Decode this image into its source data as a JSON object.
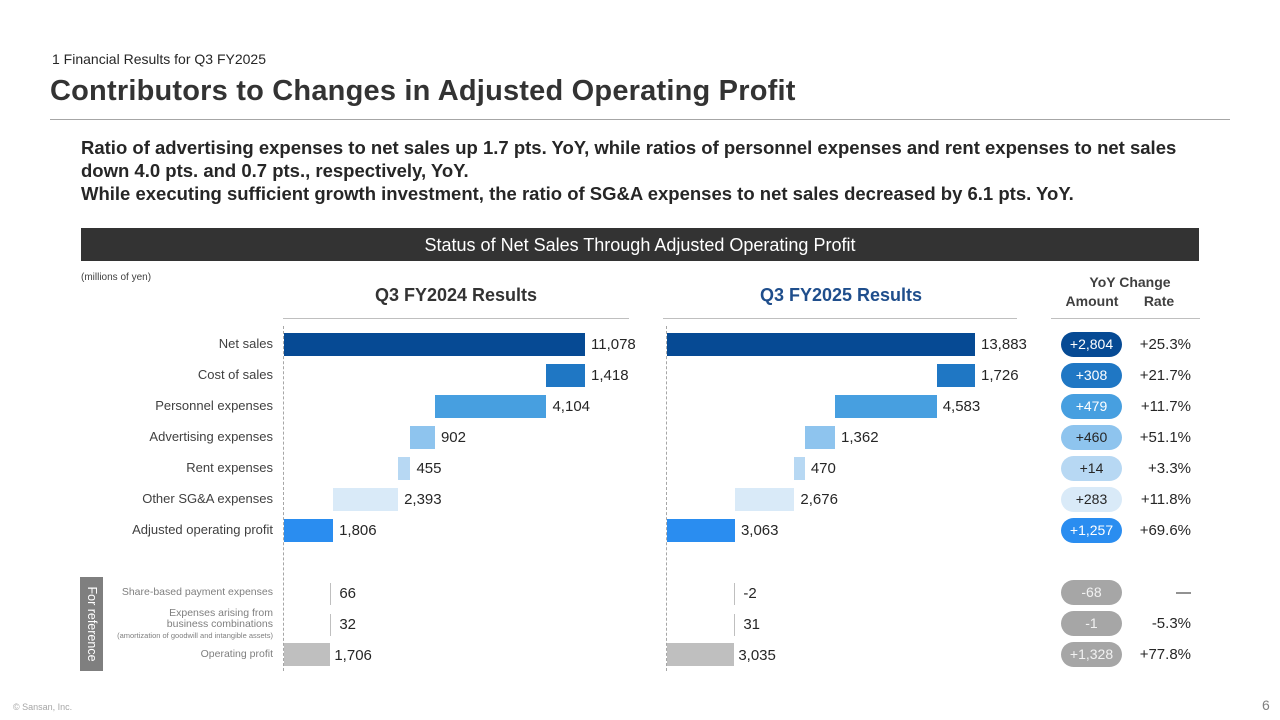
{
  "header": {
    "section": "1   Financial Results for Q3 FY2025",
    "title": "Contributors to Changes in Adjusted Operating Profit"
  },
  "summary": [
    "Ratio of advertising expenses to net sales up 1.7 pts. YoY, while ratios of personnel expenses and rent expenses to net sales down 4.0 pts. and 0.7 pts., respectively, YoY.",
    "While executing sufficient growth investment, the ratio of SG&A expenses to net sales decreased by 6.1 pts. YoY."
  ],
  "banner": "Status of Net Sales Through Adjusted Operating Profit",
  "units": "(millions of yen)",
  "yoy_header": {
    "title": "YoY Change",
    "amount": "Amount",
    "rate": "Rate"
  },
  "reference_tab": "For reference",
  "footer": {
    "copyright": "© Sansan,  Inc.",
    "page": "6"
  },
  "colors": {
    "net_sales": "#064a94",
    "cost_of_sales": "#1f77c4",
    "personnel": "#479fe0",
    "advertising": "#8ec4ee",
    "rent": "#b7d8f3",
    "other_sga": "#d9eaf8",
    "adj_op_profit": "#2a8df0",
    "reference": "#bfbfbf",
    "panel_2025_title": "#1f4e8c"
  },
  "chart_data": {
    "type": "bar",
    "subtype": "waterfall",
    "title": "Status of Net Sales Through Adjusted Operating Profit",
    "units": "millions of yen",
    "categories": [
      "Net sales",
      "Cost of sales",
      "Personnel expenses",
      "Advertising expenses",
      "Rent expenses",
      "Other SG&A expenses",
      "Adjusted operating profit"
    ],
    "series": [
      {
        "name": "Q3 FY2024 Results",
        "values": [
          11078,
          1418,
          4104,
          902,
          455,
          2393,
          1806
        ],
        "labels": [
          "11,078",
          "1,418",
          "4,104",
          "902",
          "455",
          "2,393",
          "1,806"
        ]
      },
      {
        "name": "Q3 FY2025 Results",
        "values": [
          13883,
          1726,
          4583,
          1362,
          470,
          2676,
          3063
        ],
        "labels": [
          "13,883",
          "1,726",
          "4,583",
          "1,362",
          "470",
          "2,676",
          "3,063"
        ]
      }
    ],
    "yoy_amount": [
      "+2,804",
      "+308",
      "+479",
      "+460",
      "+14",
      "+283",
      "+1,257"
    ],
    "yoy_rate": [
      "+25.3%",
      "+21.7%",
      "+11.7%",
      "+51.1%",
      "+3.3%",
      "+11.8%",
      "+69.6%"
    ],
    "reference": {
      "label": "For reference",
      "categories": [
        "Share-based payment expenses",
        "Expenses arising from business combinations",
        "Operating profit"
      ],
      "category_notes": [
        "",
        "(amortization of goodwill and intangible assets)",
        ""
      ],
      "series": [
        {
          "name": "Q3 FY2024 Results",
          "values": [
            66,
            32,
            1706
          ],
          "labels": [
            "66",
            "32",
            "1,706"
          ]
        },
        {
          "name": "Q3 FY2025 Results",
          "values": [
            -2,
            31,
            3035
          ],
          "labels": [
            "-2",
            "31",
            "3,035"
          ]
        }
      ],
      "yoy_amount": [
        "-68",
        "-1",
        "+1,328"
      ],
      "yoy_rate": [
        "—",
        "-5.3%",
        "+77.8%"
      ]
    }
  }
}
